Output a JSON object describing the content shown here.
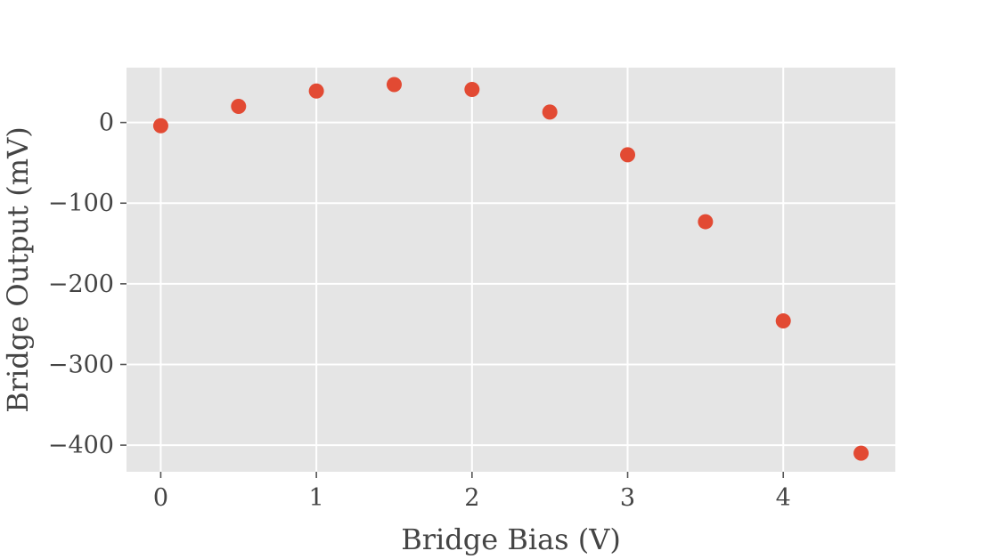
{
  "chart_data": {
    "type": "scatter",
    "title": "",
    "xlabel": "Bridge Bias (V)",
    "ylabel": "Bridge Output (mV)",
    "xlim": [
      -0.22,
      4.72
    ],
    "ylim": [
      -433,
      68
    ],
    "xticks": [
      0,
      1,
      2,
      3,
      4
    ],
    "xtick_labels": [
      "0",
      "1",
      "2",
      "3",
      "4"
    ],
    "yticks": [
      0,
      -100,
      -200,
      -300,
      -400
    ],
    "ytick_labels": [
      "0",
      "−100",
      "−200",
      "−300",
      "−400"
    ],
    "grid": true,
    "series": [
      {
        "x": [
          0,
          0.5,
          1.0,
          1.5,
          2.0,
          2.5,
          3.0,
          3.5,
          4.0,
          4.5
        ],
        "y": [
          -4,
          20,
          39,
          47,
          41,
          13,
          -40,
          -123,
          -246,
          -410
        ],
        "color": "#E24A33"
      }
    ],
    "background_color": "#E5E5E5",
    "grid_color": "#FFFFFF",
    "text_color": "#444444"
  }
}
